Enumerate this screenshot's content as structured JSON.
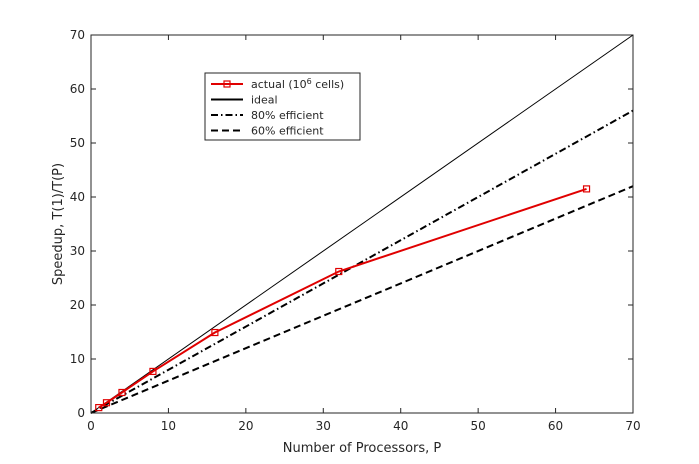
{
  "chart_data": {
    "type": "line",
    "xlabel": "Number of Processors, P",
    "ylabel": "Speedup, T(1)/T(P)",
    "xlim": [
      0,
      70
    ],
    "ylim": [
      0,
      70
    ],
    "xticks": [
      0,
      10,
      20,
      30,
      40,
      50,
      60,
      70
    ],
    "yticks": [
      0,
      10,
      20,
      30,
      40,
      50,
      60,
      70
    ],
    "grid": false,
    "legend_position": "upper-left-inside",
    "series": [
      {
        "name": "actual (10⁶ cells)",
        "legend_main": "actual (10",
        "legend_sup": "6",
        "legend_tail": " cells)",
        "color": "#e00000",
        "style": "solid",
        "marker": "square",
        "x": [
          1,
          2,
          4,
          8,
          16,
          32,
          64
        ],
        "y": [
          1,
          1.9,
          3.8,
          7.7,
          14.9,
          26.2,
          41.5
        ]
      },
      {
        "name": "ideal",
        "color": "#000000",
        "style": "solid",
        "x": [
          0,
          70
        ],
        "y": [
          0,
          70
        ]
      },
      {
        "name": "80% efficient",
        "color": "#000000",
        "style": "dashdot",
        "x": [
          0,
          70
        ],
        "y": [
          0,
          56
        ]
      },
      {
        "name": "60% efficient",
        "color": "#000000",
        "style": "dashed",
        "x": [
          0,
          70
        ],
        "y": [
          0,
          42
        ]
      }
    ]
  }
}
